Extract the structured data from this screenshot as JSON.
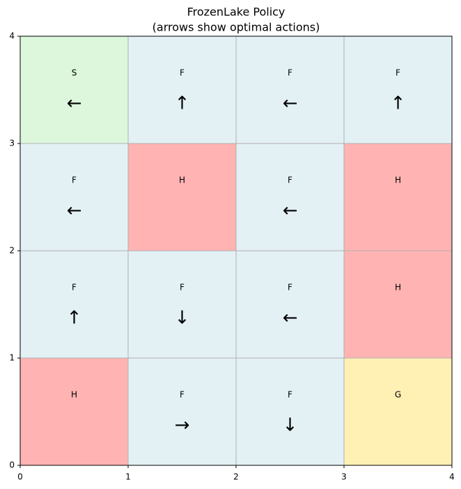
{
  "chart_data": {
    "type": "grid",
    "title": "FrozenLake Policy",
    "subtitle": "(arrows show optimal actions)",
    "rows": [
      [
        "S",
        "F",
        "F",
        "F"
      ],
      [
        "F",
        "H",
        "F",
        "H"
      ],
      [
        "F",
        "F",
        "F",
        "H"
      ],
      [
        "H",
        "F",
        "F",
        "G"
      ]
    ],
    "actions": [
      [
        "←",
        "↑",
        "←",
        "↑"
      ],
      [
        "←",
        null,
        "←",
        null
      ],
      [
        "↑",
        "↓",
        "←",
        null
      ],
      [
        null,
        "→",
        "↓",
        null
      ]
    ],
    "colors": {
      "S": "#dcf7dc",
      "F": "#e3f1f5",
      "H": "#ffb3b3",
      "G": "#fff0b3"
    },
    "xlim": [
      0,
      4
    ],
    "ylim": [
      0,
      4
    ],
    "xticks": [
      0,
      1,
      2,
      3,
      4
    ],
    "yticks": [
      0,
      1,
      2,
      3,
      4
    ],
    "grid": true
  }
}
